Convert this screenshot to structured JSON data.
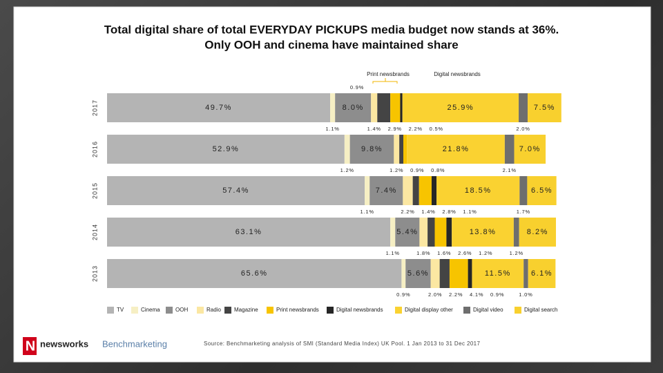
{
  "chart_data": {
    "type": "bar",
    "orientation": "horizontal",
    "stacked": true,
    "title": "Total digital share of total EVERYDAY PICKUPS media budget now stands at 36%.",
    "subtitle": "Only OOH and cinema have maintained share",
    "annotation": "0.9%",
    "categories": [
      "2017",
      "2016",
      "2015",
      "2014",
      "2013"
    ],
    "xlim": [
      0,
      100
    ],
    "series": [
      {
        "name": "TV",
        "color": "#b4b4b4",
        "label_position": "inside",
        "values": [
          49.7,
          52.9,
          57.4,
          63.1,
          65.6
        ],
        "value_labels": [
          "49.7%",
          "52.9%",
          "57.4%",
          "63.1%",
          "65.6%"
        ]
      },
      {
        "name": "Cinema",
        "color": "#f6efc4",
        "label_position": "below",
        "values": [
          1.1,
          1.2,
          1.1,
          1.1,
          0.9
        ],
        "value_labels": [
          "1.1%",
          "1.2%",
          "1.1%",
          "1.1%",
          "0.9%"
        ]
      },
      {
        "name": "OOH",
        "color": "#8d8d8d",
        "label_position": "inside",
        "values": [
          8.0,
          9.8,
          7.4,
          5.4,
          5.6
        ],
        "value_labels": [
          "8.0%",
          "9.8%",
          "7.4%",
          "5.4%",
          "5.6%"
        ]
      },
      {
        "name": "Radio",
        "color": "#fbe7a2",
        "label_position": "below",
        "values": [
          1.4,
          1.2,
          2.2,
          1.8,
          2.0
        ],
        "value_labels": [
          "1.4%",
          "1.2%",
          "2.2%",
          "1.8%",
          "2.0%"
        ]
      },
      {
        "name": "Magazine",
        "color": "#444444",
        "label_position": "below",
        "values": [
          2.9,
          0.9,
          1.4,
          1.6,
          2.2
        ],
        "value_labels": [
          "2.9%",
          "0.9%",
          "1.4%",
          "1.6%",
          "2.2%"
        ]
      },
      {
        "name": "Print newsbrands",
        "color": "#f7c400",
        "label_position": "below",
        "values": [
          2.2,
          0.8,
          2.8,
          2.6,
          4.1
        ],
        "value_labels": [
          "2.2%",
          "0.8%",
          "2.8%",
          "2.6%",
          "4.1%"
        ]
      },
      {
        "name": "Digital newsbrands",
        "color": "#262626",
        "label_position": "below",
        "values": [
          0.5,
          null,
          1.1,
          1.2,
          0.9
        ],
        "value_labels": [
          "0.5%",
          null,
          "1.1%",
          "1.2%",
          "0.9%"
        ]
      },
      {
        "name": "Digital display other",
        "color": "#fad231",
        "label_position": "inside",
        "values": [
          25.9,
          21.8,
          18.5,
          13.8,
          11.5
        ],
        "value_labels": [
          "25.9%",
          "21.8%",
          "18.5%",
          "13.8%",
          "11.5%"
        ]
      },
      {
        "name": "Digital video",
        "color": "#6e6e6e",
        "label_position": "below",
        "values": [
          2.0,
          2.1,
          1.7,
          1.2,
          1.0
        ],
        "value_labels": [
          "2.0%",
          "2.1%",
          "1.7%",
          "1.2%",
          "1.0%"
        ]
      },
      {
        "name": "Digital search",
        "color": "#f8d02e",
        "label_position": "inside",
        "values": [
          7.5,
          7.0,
          6.5,
          8.2,
          6.1
        ],
        "value_labels": [
          "7.5%",
          "7.0%",
          "6.5%",
          "8.2%",
          "6.1%"
        ]
      }
    ]
  },
  "source": "Source: Benchmarketing analysis of SMI (Standard Media Index) UK Pool. 1 Jan 2013 to 31 Dec 2017",
  "logos": [
    "newsworks",
    "Benchmarketing"
  ]
}
